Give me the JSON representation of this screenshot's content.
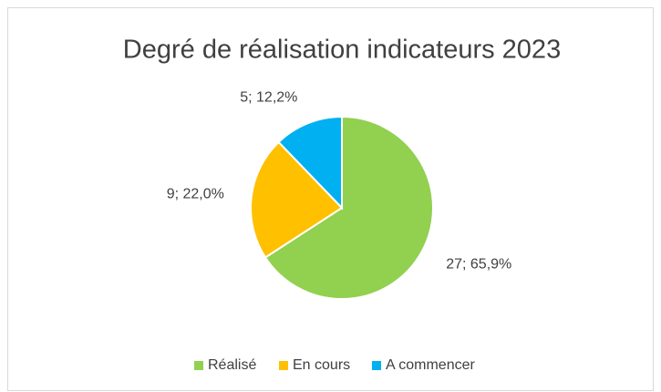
{
  "chart_data": {
    "type": "pie",
    "title": "Degré de réalisation indicateurs 2023",
    "categories": [
      "Réalisé",
      "En cours",
      "A commencer"
    ],
    "values": [
      27,
      9,
      5
    ],
    "value_labels": [
      "27; 65,9%",
      "9; 22,0%",
      "5; 12,2%"
    ],
    "colors": [
      "#92d050",
      "#ffc000",
      "#00b0f0"
    ],
    "legend": "bottom"
  }
}
